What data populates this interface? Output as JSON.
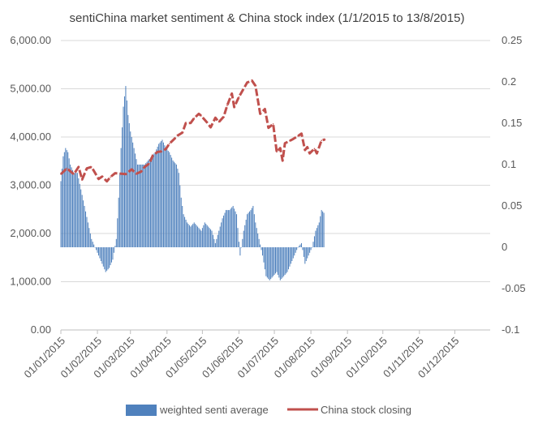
{
  "chart_data": {
    "type": "bar+line",
    "title": "sentiChina market sentiment & China stock index (1/1/2015 to 13/8/2015)",
    "left_axis": {
      "ylim": [
        0,
        6000
      ],
      "ticks": [
        "0.00",
        "1,000.00",
        "2,000.00",
        "3,000.00",
        "4,000.00",
        "5,000.00",
        "6,000.00"
      ]
    },
    "right_axis": {
      "ylim": [
        -0.1,
        0.25
      ],
      "ticks": [
        "-0.1",
        "-0.05",
        "0",
        "0.05",
        "0.1",
        "0.15",
        "0.2",
        "0.25"
      ]
    },
    "x_ticks": [
      "01/01/2015",
      "01/02/2015",
      "01/03/2015",
      "01/04/2015",
      "01/05/2015",
      "01/06/2015",
      "01/07/2015",
      "01/08/2015",
      "01/09/2015",
      "01/10/2015",
      "01/11/2015",
      "01/12/2015"
    ],
    "grid": true,
    "legend_position": "bottom",
    "colors": {
      "bar": "#4f81bd",
      "line": "#c0504d"
    },
    "series": [
      {
        "name": "weighted senti average",
        "axis": "right",
        "type": "bar",
        "points": [
          [
            "2015-01-01",
            0.08
          ],
          [
            "2015-01-03",
            0.11
          ],
          [
            "2015-01-05",
            0.12
          ],
          [
            "2015-01-07",
            0.115
          ],
          [
            "2015-01-09",
            0.1
          ],
          [
            "2015-01-12",
            0.09
          ],
          [
            "2015-01-15",
            0.09
          ],
          [
            "2015-01-18",
            0.07
          ],
          [
            "2015-01-21",
            0.05
          ],
          [
            "2015-01-24",
            0.03
          ],
          [
            "2015-01-27",
            0.01
          ],
          [
            "2015-01-30",
            0.0
          ],
          [
            "2015-02-02",
            -0.01
          ],
          [
            "2015-02-05",
            -0.02
          ],
          [
            "2015-02-08",
            -0.03
          ],
          [
            "2015-02-11",
            -0.025
          ],
          [
            "2015-02-14",
            -0.015
          ],
          [
            "2015-02-17",
            0.01
          ],
          [
            "2015-02-19",
            0.06
          ],
          [
            "2015-02-21",
            0.12
          ],
          [
            "2015-02-23",
            0.17
          ],
          [
            "2015-02-25",
            0.195
          ],
          [
            "2015-02-27",
            0.16
          ],
          [
            "2015-03-01",
            0.14
          ],
          [
            "2015-03-04",
            0.12
          ],
          [
            "2015-03-07",
            0.1
          ],
          [
            "2015-03-10",
            0.1
          ],
          [
            "2015-03-13",
            0.1
          ],
          [
            "2015-03-16",
            0.105
          ],
          [
            "2015-03-19",
            0.11
          ],
          [
            "2015-03-22",
            0.115
          ],
          [
            "2015-03-25",
            0.125
          ],
          [
            "2015-03-28",
            0.13
          ],
          [
            "2015-03-31",
            0.12
          ],
          [
            "2015-04-03",
            0.115
          ],
          [
            "2015-04-06",
            0.105
          ],
          [
            "2015-04-09",
            0.1
          ],
          [
            "2015-04-11",
            0.09
          ],
          [
            "2015-04-13",
            0.06
          ],
          [
            "2015-04-15",
            0.04
          ],
          [
            "2015-04-18",
            0.03
          ],
          [
            "2015-04-21",
            0.025
          ],
          [
            "2015-04-24",
            0.03
          ],
          [
            "2015-04-27",
            0.025
          ],
          [
            "2015-04-30",
            0.02
          ],
          [
            "2015-05-03",
            0.03
          ],
          [
            "2015-05-06",
            0.025
          ],
          [
            "2015-05-09",
            0.02
          ],
          [
            "2015-05-12",
            0.005
          ],
          [
            "2015-05-15",
            0.02
          ],
          [
            "2015-05-18",
            0.035
          ],
          [
            "2015-05-21",
            0.045
          ],
          [
            "2015-05-24",
            0.045
          ],
          [
            "2015-05-27",
            0.05
          ],
          [
            "2015-05-30",
            0.04
          ],
          [
            "2015-06-02",
            -0.01
          ],
          [
            "2015-06-05",
            0.02
          ],
          [
            "2015-06-08",
            0.04
          ],
          [
            "2015-06-11",
            0.045
          ],
          [
            "2015-06-13",
            0.05
          ],
          [
            "2015-06-15",
            0.03
          ],
          [
            "2015-06-18",
            0.01
          ],
          [
            "2015-06-21",
            -0.01
          ],
          [
            "2015-06-24",
            -0.035
          ],
          [
            "2015-06-27",
            -0.04
          ],
          [
            "2015-06-30",
            -0.035
          ],
          [
            "2015-07-03",
            -0.03
          ],
          [
            "2015-07-06",
            -0.04
          ],
          [
            "2015-07-09",
            -0.035
          ],
          [
            "2015-07-12",
            -0.03
          ],
          [
            "2015-07-15",
            -0.02
          ],
          [
            "2015-07-18",
            -0.01
          ],
          [
            "2015-07-21",
            0.0
          ],
          [
            "2015-07-24",
            0.005
          ],
          [
            "2015-07-27",
            -0.02
          ],
          [
            "2015-07-30",
            -0.01
          ],
          [
            "2015-08-02",
            0.0
          ],
          [
            "2015-08-05",
            0.02
          ],
          [
            "2015-08-08",
            0.03
          ],
          [
            "2015-08-10",
            0.045
          ],
          [
            "2015-08-13",
            0.04
          ]
        ]
      },
      {
        "name": "China stock closing",
        "axis": "left",
        "type": "line",
        "points": [
          [
            "2015-01-01",
            3230
          ],
          [
            "2015-01-06",
            3350
          ],
          [
            "2015-01-09",
            3290
          ],
          [
            "2015-01-12",
            3230
          ],
          [
            "2015-01-16",
            3380
          ],
          [
            "2015-01-19",
            3120
          ],
          [
            "2015-01-23",
            3350
          ],
          [
            "2015-01-27",
            3380
          ],
          [
            "2015-02-02",
            3130
          ],
          [
            "2015-02-05",
            3180
          ],
          [
            "2015-02-09",
            3080
          ],
          [
            "2015-02-12",
            3170
          ],
          [
            "2015-02-16",
            3250
          ],
          [
            "2015-02-25",
            3230
          ],
          [
            "2015-03-02",
            3330
          ],
          [
            "2015-03-06",
            3240
          ],
          [
            "2015-03-10",
            3280
          ],
          [
            "2015-03-13",
            3380
          ],
          [
            "2015-03-17",
            3450
          ],
          [
            "2015-03-20",
            3620
          ],
          [
            "2015-03-24",
            3690
          ],
          [
            "2015-03-27",
            3700
          ],
          [
            "2015-03-31",
            3750
          ],
          [
            "2015-04-03",
            3860
          ],
          [
            "2015-04-08",
            3980
          ],
          [
            "2015-04-10",
            4030
          ],
          [
            "2015-04-14",
            4090
          ],
          [
            "2015-04-17",
            4290
          ],
          [
            "2015-04-21",
            4290
          ],
          [
            "2015-04-24",
            4390
          ],
          [
            "2015-04-28",
            4480
          ],
          [
            "2015-04-30",
            4440
          ],
          [
            "2015-05-05",
            4300
          ],
          [
            "2015-05-08",
            4200
          ],
          [
            "2015-05-12",
            4400
          ],
          [
            "2015-05-15",
            4310
          ],
          [
            "2015-05-19",
            4420
          ],
          [
            "2015-05-22",
            4650
          ],
          [
            "2015-05-26",
            4900
          ],
          [
            "2015-05-28",
            4620
          ],
          [
            "2015-06-01",
            4830
          ],
          [
            "2015-06-04",
            4960
          ],
          [
            "2015-06-08",
            5130
          ],
          [
            "2015-06-12",
            5170
          ],
          [
            "2015-06-15",
            5060
          ],
          [
            "2015-06-19",
            4480
          ],
          [
            "2015-06-23",
            4580
          ],
          [
            "2015-06-26",
            4190
          ],
          [
            "2015-06-30",
            4270
          ],
          [
            "2015-07-03",
            3690
          ],
          [
            "2015-07-06",
            3770
          ],
          [
            "2015-07-08",
            3510
          ],
          [
            "2015-07-10",
            3870
          ],
          [
            "2015-07-14",
            3920
          ],
          [
            "2015-07-17",
            3960
          ],
          [
            "2015-07-21",
            4020
          ],
          [
            "2015-07-24",
            4070
          ],
          [
            "2015-07-27",
            3730
          ],
          [
            "2015-07-29",
            3790
          ],
          [
            "2015-07-31",
            3660
          ],
          [
            "2015-08-04",
            3760
          ],
          [
            "2015-08-06",
            3660
          ],
          [
            "2015-08-10",
            3930
          ],
          [
            "2015-08-13",
            3950
          ]
        ]
      }
    ]
  }
}
